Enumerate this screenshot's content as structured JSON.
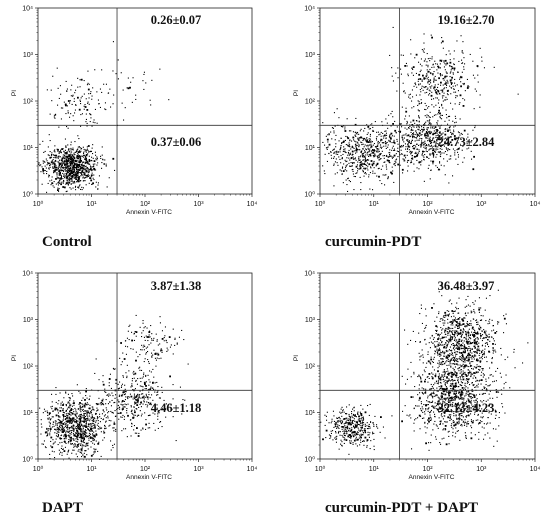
{
  "chart_data": [
    {
      "type": "scatter",
      "title": "Control",
      "xlabel": "Annexin V-FITC",
      "ylabel": "PI",
      "x_scale": "log",
      "y_scale": "log",
      "xlim": [
        1,
        10000
      ],
      "ylim": [
        1,
        10000
      ],
      "x_ticks": [
        "10⁰",
        "10¹",
        "10²",
        "10³",
        "10⁴"
      ],
      "y_ticks": [
        "10⁰",
        "10¹",
        "10²",
        "10³",
        "10⁴"
      ],
      "gates": {
        "x": 30,
        "y": 30
      },
      "quadrant_labels": {
        "upper_right": "0.26±0.07",
        "lower_right": "0.37±0.06"
      },
      "populations": [
        {
          "cx": 4,
          "cy": 4,
          "spread_x": 0.25,
          "spread_y": 0.22,
          "density": "very high"
        },
        {
          "cx": 6,
          "cy": 80,
          "spread_x": 0.35,
          "spread_y": 0.3,
          "density": "sparse"
        },
        {
          "cx": 40,
          "cy": 250,
          "spread_x": 0.5,
          "spread_y": 0.3,
          "density": "very sparse"
        }
      ]
    },
    {
      "type": "scatter",
      "title": "curcumin-PDT",
      "xlabel": "Annexin V-FITC",
      "ylabel": "PI",
      "x_scale": "log",
      "y_scale": "log",
      "xlim": [
        1,
        10000
      ],
      "ylim": [
        1,
        10000
      ],
      "x_ticks": [
        "10⁰",
        "10¹",
        "10²",
        "10³",
        "10⁴"
      ],
      "y_ticks": [
        "10⁰",
        "10¹",
        "10²",
        "10³",
        "10⁴"
      ],
      "gates": {
        "x": 30,
        "y": 30
      },
      "quadrant_labels": {
        "upper_right": "19.16±2.70",
        "lower_right": "24.73±2.84"
      },
      "populations": [
        {
          "cx": 6,
          "cy": 8,
          "spread_x": 0.35,
          "spread_y": 0.3,
          "density": "high"
        },
        {
          "cx": 100,
          "cy": 15,
          "spread_x": 0.35,
          "spread_y": 0.3,
          "density": "high"
        },
        {
          "cx": 150,
          "cy": 300,
          "spread_x": 0.35,
          "spread_y": 0.35,
          "density": "medium"
        }
      ]
    },
    {
      "type": "scatter",
      "title": "DAPT",
      "xlabel": "Annexin V-FITC",
      "ylabel": "PI",
      "x_scale": "log",
      "y_scale": "log",
      "xlim": [
        1,
        10000
      ],
      "ylim": [
        1,
        10000
      ],
      "x_ticks": [
        "10⁰",
        "10¹",
        "10²",
        "10³",
        "10⁴"
      ],
      "y_ticks": [
        "10⁰",
        "10¹",
        "10²",
        "10³",
        "10⁴"
      ],
      "gates": {
        "x": 30,
        "y": 30
      },
      "quadrant_labels": {
        "upper_right": "3.87±1.38",
        "lower_right": "4.46±1.18"
      },
      "populations": [
        {
          "cx": 5,
          "cy": 5,
          "spread_x": 0.3,
          "spread_y": 0.28,
          "density": "very high"
        },
        {
          "cx": 60,
          "cy": 20,
          "spread_x": 0.35,
          "spread_y": 0.35,
          "density": "medium"
        },
        {
          "cx": 120,
          "cy": 300,
          "spread_x": 0.3,
          "spread_y": 0.25,
          "density": "sparse"
        }
      ]
    },
    {
      "type": "scatter",
      "title": "curcumin-PDT + DAPT",
      "xlabel": "Annexin V-FITC",
      "ylabel": "PI",
      "x_scale": "log",
      "y_scale": "log",
      "xlim": [
        1,
        10000
      ],
      "ylim": [
        1,
        10000
      ],
      "x_ticks": [
        "10⁰",
        "10¹",
        "10²",
        "10³",
        "10⁴"
      ],
      "y_ticks": [
        "10⁰",
        "10¹",
        "10²",
        "10³",
        "10⁴"
      ],
      "gates": {
        "x": 30,
        "y": 30
      },
      "quadrant_labels": {
        "upper_right": "36.48±3.97",
        "lower_right": "32.13±4.23"
      },
      "populations": [
        {
          "cx": 4,
          "cy": 5,
          "spread_x": 0.22,
          "spread_y": 0.2,
          "density": "medium"
        },
        {
          "cx": 300,
          "cy": 20,
          "spread_x": 0.35,
          "spread_y": 0.4,
          "density": "very high"
        },
        {
          "cx": 400,
          "cy": 300,
          "spread_x": 0.35,
          "spread_y": 0.4,
          "density": "very high"
        }
      ]
    }
  ]
}
